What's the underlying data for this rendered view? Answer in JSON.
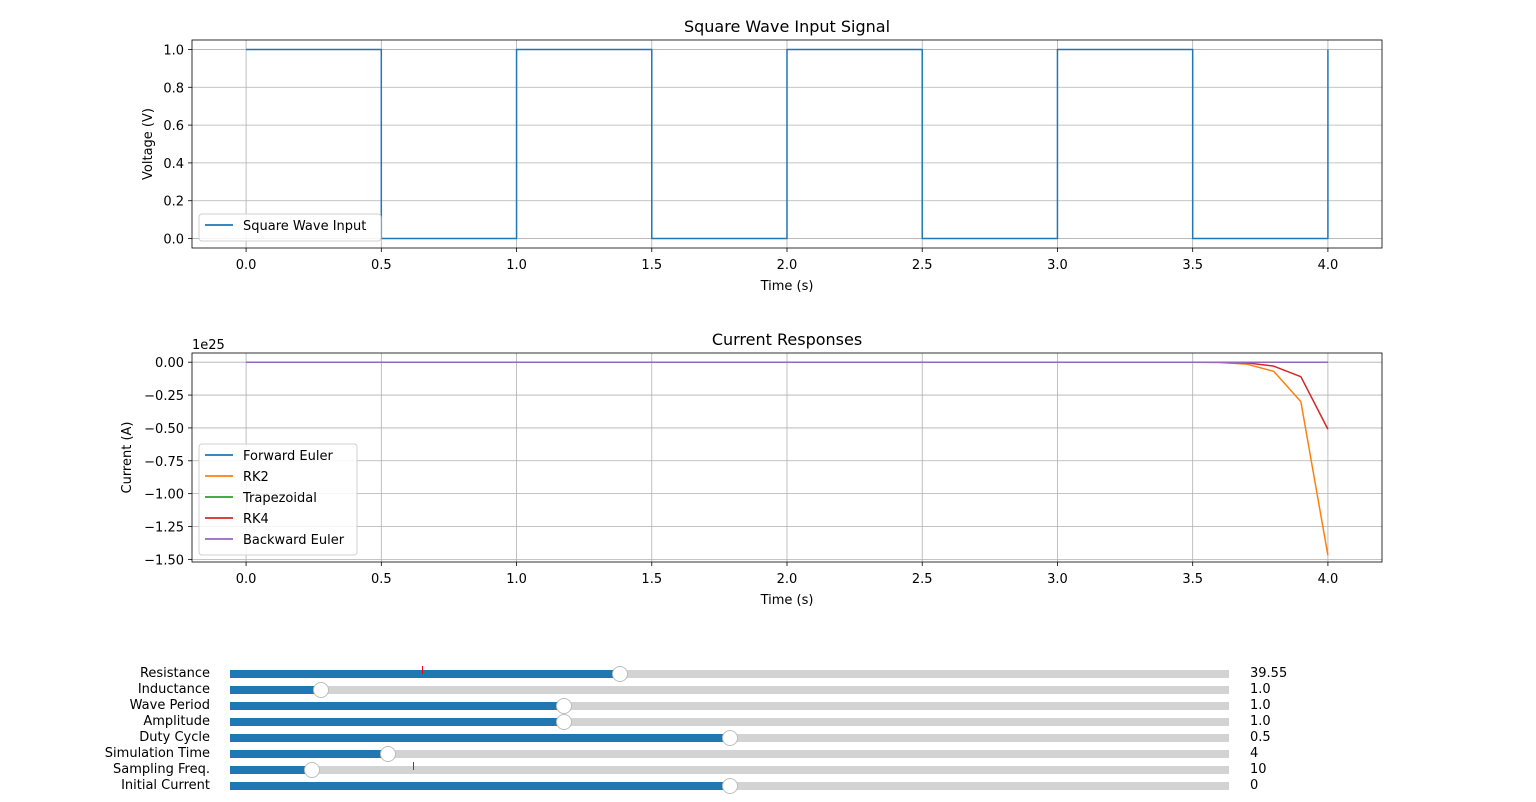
{
  "colors": {
    "series": [
      "#1f77b4",
      "#ff7f0e",
      "#2ca02c",
      "#d62728",
      "#9467bd"
    ],
    "slider_fill": "#1f77b4",
    "slider_track": "#d3d3d3",
    "slider_initial_marker": "#ff0000",
    "grid": "#b0b0b0"
  },
  "chart_data": [
    {
      "type": "line",
      "title": "Square Wave Input Signal",
      "xlabel": "Time (s)",
      "ylabel": "Voltage (V)",
      "xlim": [
        -0.2,
        4.2
      ],
      "ylim": [
        -0.05,
        1.05
      ],
      "xticks": [
        0.0,
        0.5,
        1.0,
        1.5,
        2.0,
        2.5,
        3.0,
        3.5,
        4.0
      ],
      "xtick_labels": [
        "0.0",
        "0.5",
        "1.0",
        "1.5",
        "2.0",
        "2.5",
        "3.0",
        "3.5",
        "4.0"
      ],
      "yticks": [
        0.0,
        0.2,
        0.4,
        0.6,
        0.8,
        1.0
      ],
      "ytick_labels": [
        "0.0",
        "0.2",
        "0.4",
        "0.6",
        "0.8",
        "1.0"
      ],
      "grid": true,
      "legend_position": "lower-left",
      "series": [
        {
          "name": "Square Wave Input",
          "x": [
            0,
            0.5,
            0.5,
            1.0,
            1.0,
            1.5,
            1.5,
            2.0,
            2.0,
            2.5,
            2.5,
            3.0,
            3.0,
            3.5,
            3.5,
            4.0,
            4.0
          ],
          "y": [
            1,
            1,
            0,
            0,
            1,
            1,
            0,
            0,
            1,
            1,
            0,
            0,
            1,
            1,
            0,
            0,
            1
          ]
        }
      ]
    },
    {
      "type": "line",
      "title": "Current Responses",
      "xlabel": "Time (s)",
      "ylabel": "Current (A)",
      "y_offset_label": "1e25",
      "xlim": [
        -0.2,
        4.2
      ],
      "ylim": [
        -1.52,
        0.07
      ],
      "xticks": [
        0.0,
        0.5,
        1.0,
        1.5,
        2.0,
        2.5,
        3.0,
        3.5,
        4.0
      ],
      "xtick_labels": [
        "0.0",
        "0.5",
        "1.0",
        "1.5",
        "2.0",
        "2.5",
        "3.0",
        "3.5",
        "4.0"
      ],
      "yticks": [
        0.0,
        -0.25,
        -0.5,
        -0.75,
        -1.0,
        -1.25,
        -1.5
      ],
      "ytick_labels": [
        "0.00",
        "−0.25",
        "−0.50",
        "−0.75",
        "−1.00",
        "−1.25",
        "−1.50"
      ],
      "grid": true,
      "legend_position": "lower-left",
      "series": [
        {
          "name": "Forward Euler",
          "x": [
            0,
            4.0
          ],
          "y": [
            0,
            0
          ]
        },
        {
          "name": "RK2",
          "x": [
            0,
            3.5,
            3.6,
            3.7,
            3.8,
            3.9,
            4.0
          ],
          "y": [
            0,
            0,
            -0.002,
            -0.015,
            -0.07,
            -0.3,
            -1.47
          ]
        },
        {
          "name": "Trapezoidal",
          "x": [
            0,
            4.0
          ],
          "y": [
            0,
            0
          ]
        },
        {
          "name": "RK4",
          "x": [
            0,
            3.6,
            3.7,
            3.8,
            3.9,
            4.0
          ],
          "y": [
            0,
            0,
            -0.005,
            -0.03,
            -0.11,
            -0.51
          ]
        },
        {
          "name": "Backward Euler",
          "x": [
            0,
            4.0
          ],
          "y": [
            0,
            0
          ]
        }
      ]
    }
  ],
  "sliders": [
    {
      "label": "Resistance",
      "value": "39.55",
      "fraction": 0.39,
      "initial_fraction": 0.193
    },
    {
      "label": "Inductance",
      "value": "1.0",
      "fraction": 0.091
    },
    {
      "label": "Wave Period",
      "value": "1.0",
      "fraction": 0.334
    },
    {
      "label": "Amplitude",
      "value": "1.0",
      "fraction": 0.334
    },
    {
      "label": "Duty Cycle",
      "value": "0.5",
      "fraction": 0.5
    },
    {
      "label": "Simulation Time",
      "value": "4",
      "fraction": 0.158
    },
    {
      "label": "Sampling Freq.",
      "value": "10",
      "fraction": 0.082,
      "initial_fraction": 0.184
    },
    {
      "label": "Initial Current",
      "value": "0",
      "fraction": 0.5
    }
  ]
}
